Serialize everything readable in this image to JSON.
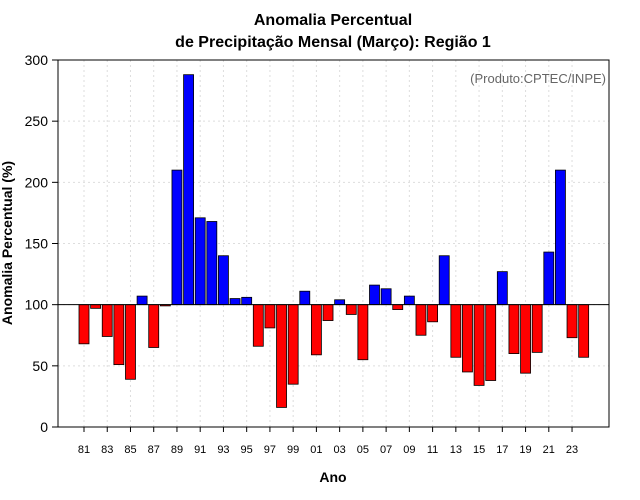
{
  "chart_data": {
    "type": "bar",
    "title_line1": "Anomalia Percentual",
    "title_line2": "de Precipitação Mensal (Março): Região 1",
    "xlabel": "Ano",
    "ylabel": "Anomalia Percentual (%)",
    "credit": "(Produto:CPTEC/INPE)",
    "baseline": 100,
    "ylim": [
      0,
      300
    ],
    "yticks": [
      0,
      50,
      100,
      150,
      200,
      250,
      300
    ],
    "categories": [
      "81",
      "82",
      "83",
      "84",
      "85",
      "86",
      "87",
      "88",
      "89",
      "90",
      "91",
      "92",
      "93",
      "94",
      "95",
      "96",
      "97",
      "98",
      "99",
      "00",
      "01",
      "02",
      "03",
      "04",
      "05",
      "06",
      "07",
      "08",
      "09",
      "10",
      "11",
      "12",
      "13",
      "14",
      "15",
      "16",
      "17",
      "18",
      "19",
      "20",
      "21",
      "22",
      "23",
      "24"
    ],
    "xtick_labels": [
      "81",
      "83",
      "85",
      "87",
      "89",
      "91",
      "93",
      "95",
      "97",
      "99",
      "01",
      "03",
      "05",
      "07",
      "09",
      "11",
      "13",
      "15",
      "17",
      "19",
      "21",
      "23"
    ],
    "values": [
      68,
      97,
      74,
      51,
      39,
      107,
      65,
      99,
      210,
      288,
      171,
      168,
      140,
      105,
      106,
      66,
      81,
      16,
      35,
      111,
      59,
      87,
      104,
      92,
      55,
      116,
      113,
      96,
      107,
      75,
      86,
      140,
      57,
      45,
      34,
      38,
      127,
      60,
      44,
      61,
      143,
      210,
      73,
      57
    ],
    "colors": {
      "above": "#0000ff",
      "below": "#ff0000",
      "bar_edge": "#000000",
      "baseline": "#000000",
      "grid": "#dddddd"
    }
  }
}
